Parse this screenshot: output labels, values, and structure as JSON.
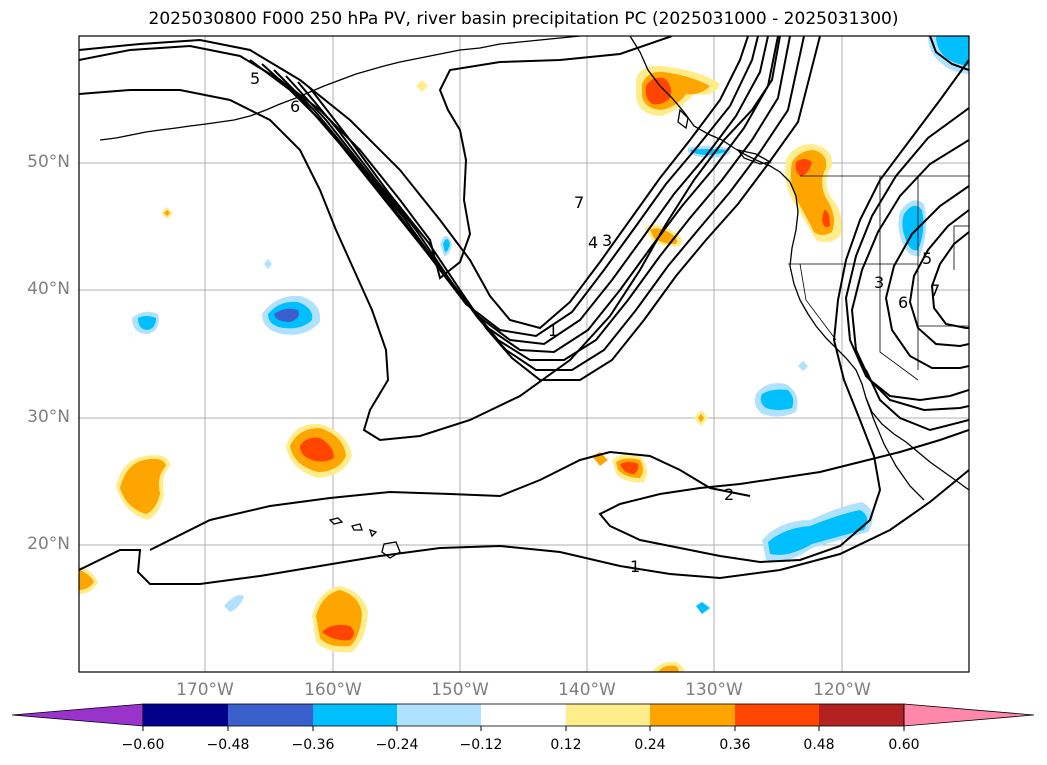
{
  "title": "2025030800 F000 250 hPa PV, river basin precipitation PC (2025031000 - 2025031300)",
  "lat_labels": [
    "50°N",
    "40°N",
    "30°N",
    "20°N"
  ],
  "lon_labels": [
    "170°W",
    "160°W",
    "150°W",
    "140°W",
    "130°W",
    "120°W"
  ],
  "contour_labels": [
    "5",
    "6",
    "7",
    "4",
    "3",
    "1",
    "2",
    "1",
    "3",
    "5",
    "6",
    "7"
  ],
  "colorbar": {
    "ticks": [
      "−0.60",
      "−0.48",
      "−0.36",
      "−0.24",
      "−0.12",
      "0.12",
      "0.24",
      "0.36",
      "0.48",
      "0.60"
    ],
    "colors": [
      "#9933cc",
      "#00008b",
      "#3a5fcd",
      "#00bfff",
      "#b0e2ff",
      "#ffffff",
      "#ffec8b",
      "#ffa500",
      "#ff4500",
      "#b22222",
      "#ff88aa"
    ]
  },
  "colors": {
    "pv_contour": "#000000",
    "coastline": "#000000",
    "gridline": "#b0b0b0",
    "axis_label": "#7f7f7f"
  }
}
